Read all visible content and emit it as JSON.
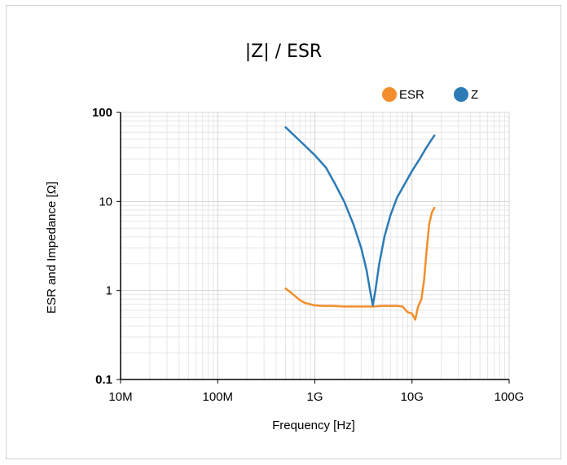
{
  "chart_data": {
    "type": "line",
    "title": "|Z| / ESR",
    "xlabel": "Frequency [Hz]",
    "ylabel": "ESR and Impedance [Ω]",
    "x_scale": "log",
    "y_scale": "log",
    "xlim": [
      10000000,
      100000000000
    ],
    "ylim": [
      0.1,
      100
    ],
    "x_ticks": [
      {
        "value": 10000000,
        "label": "10M"
      },
      {
        "value": 100000000,
        "label": "100M"
      },
      {
        "value": 1000000000,
        "label": "1G"
      },
      {
        "value": 10000000000,
        "label": "10G"
      },
      {
        "value": 100000000000,
        "label": "100G"
      }
    ],
    "y_ticks": [
      {
        "value": 0.1,
        "label": "0.1",
        "bold": true
      },
      {
        "value": 1,
        "label": "1",
        "bold": false
      },
      {
        "value": 10,
        "label": "10",
        "bold": false
      },
      {
        "value": 100,
        "label": "100",
        "bold": true
      }
    ],
    "grid": true,
    "legend_position": "top-right",
    "series": [
      {
        "name": "ESR",
        "color": "#f28e2b",
        "points": [
          [
            500000000,
            1.05
          ],
          [
            600000000,
            0.9
          ],
          [
            700000000,
            0.78
          ],
          [
            800000000,
            0.72
          ],
          [
            1000000000,
            0.68
          ],
          [
            1200000000,
            0.67
          ],
          [
            1500000000,
            0.67
          ],
          [
            2000000000,
            0.66
          ],
          [
            3000000000,
            0.66
          ],
          [
            4000000000,
            0.66
          ],
          [
            5000000000,
            0.67
          ],
          [
            6000000000,
            0.67
          ],
          [
            7000000000,
            0.67
          ],
          [
            8000000000,
            0.66
          ],
          [
            9000000000,
            0.57
          ],
          [
            10000000000,
            0.55
          ],
          [
            10800000000,
            0.47
          ],
          [
            11500000000,
            0.65
          ],
          [
            12500000000,
            0.8
          ],
          [
            13300000000,
            1.3
          ],
          [
            14000000000,
            2.5
          ],
          [
            15000000000,
            5.5
          ],
          [
            16000000000,
            7.5
          ],
          [
            17000000000,
            8.5
          ]
        ]
      },
      {
        "name": "Z",
        "color": "#2c7bb6",
        "points": [
          [
            500000000,
            68
          ],
          [
            700000000,
            48
          ],
          [
            1000000000,
            33
          ],
          [
            1300000000,
            24
          ],
          [
            1600000000,
            16
          ],
          [
            2000000000,
            10
          ],
          [
            2500000000,
            5.5
          ],
          [
            3000000000,
            3
          ],
          [
            3400000000,
            1.7
          ],
          [
            3700000000,
            1.0
          ],
          [
            3950000000,
            0.68
          ],
          [
            4200000000,
            1.0
          ],
          [
            4600000000,
            2.0
          ],
          [
            5200000000,
            4
          ],
          [
            6000000000,
            7
          ],
          [
            7000000000,
            11
          ],
          [
            8500000000,
            16
          ],
          [
            10000000000,
            22
          ],
          [
            12000000000,
            30
          ],
          [
            14000000000,
            40
          ],
          [
            16000000000,
            50
          ],
          [
            17000000000,
            55
          ]
        ]
      }
    ]
  }
}
